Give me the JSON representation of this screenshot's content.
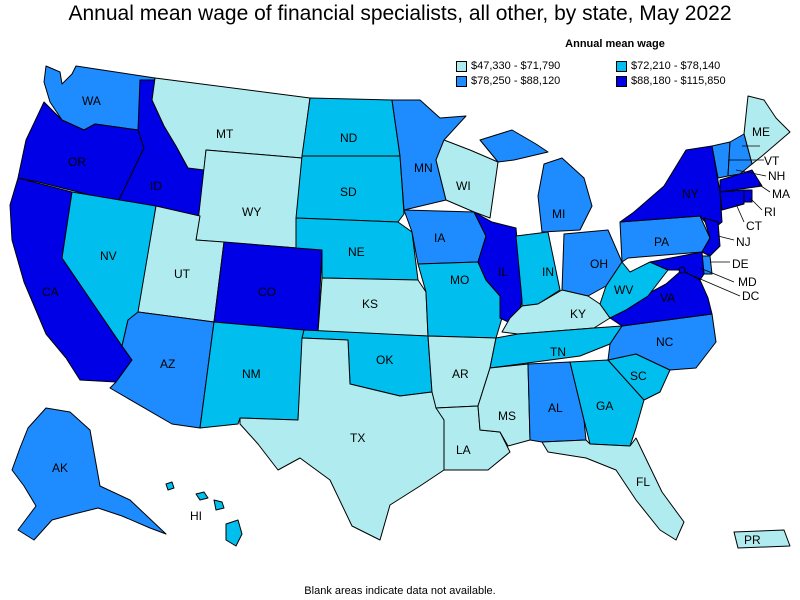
{
  "title": "Annual mean wage of financial specialists, all other, by state, May 2022",
  "legend": {
    "title": "Annual mean wage",
    "bins": [
      {
        "label": "$47,330 - $71,790",
        "color": "#b0ecef"
      },
      {
        "label": "$72,210 - $78,140",
        "color": "#00bfef"
      },
      {
        "label": "$78,250 - $88,120",
        "color": "#1e8cff"
      },
      {
        "label": "$88,180 - $115,850",
        "color": "#0000e6"
      }
    ]
  },
  "footnote": "Blank areas indicate data not available.",
  "states": {
    "WA": {
      "label": "WA",
      "bin": 2
    },
    "OR": {
      "label": "OR",
      "bin": 3
    },
    "CA": {
      "label": "CA",
      "bin": 3
    },
    "ID": {
      "label": "ID",
      "bin": 3
    },
    "NV": {
      "label": "NV",
      "bin": 1
    },
    "MT": {
      "label": "MT",
      "bin": 0
    },
    "WY": {
      "label": "WY",
      "bin": 0
    },
    "UT": {
      "label": "UT",
      "bin": 0
    },
    "AZ": {
      "label": "AZ",
      "bin": 2
    },
    "CO": {
      "label": "CO",
      "bin": 3
    },
    "NM": {
      "label": "NM",
      "bin": 1
    },
    "ND": {
      "label": "ND",
      "bin": 1
    },
    "SD": {
      "label": "SD",
      "bin": 1
    },
    "NE": {
      "label": "NE",
      "bin": 1
    },
    "KS": {
      "label": "KS",
      "bin": 0
    },
    "OK": {
      "label": "OK",
      "bin": 1
    },
    "TX": {
      "label": "TX",
      "bin": 0
    },
    "MN": {
      "label": "MN",
      "bin": 2
    },
    "IA": {
      "label": "IA",
      "bin": 2
    },
    "MO": {
      "label": "MO",
      "bin": 1
    },
    "AR": {
      "label": "AR",
      "bin": 0
    },
    "LA": {
      "label": "LA",
      "bin": 0
    },
    "WI": {
      "label": "WI",
      "bin": 0
    },
    "IL": {
      "label": "IL",
      "bin": 3
    },
    "MI": {
      "label": "MI",
      "bin": 2
    },
    "IN": {
      "label": "IN",
      "bin": 1
    },
    "OH": {
      "label": "OH",
      "bin": 2
    },
    "KY": {
      "label": "KY",
      "bin": 0
    },
    "TN": {
      "label": "TN",
      "bin": 1
    },
    "MS": {
      "label": "MS",
      "bin": 0
    },
    "AL": {
      "label": "AL",
      "bin": 2
    },
    "GA": {
      "label": "GA",
      "bin": 1
    },
    "FL": {
      "label": "FL",
      "bin": 0
    },
    "SC": {
      "label": "SC",
      "bin": 1
    },
    "NC": {
      "label": "NC",
      "bin": 2
    },
    "VA": {
      "label": "VA",
      "bin": 3
    },
    "WV": {
      "label": "WV",
      "bin": 1
    },
    "PA": {
      "label": "PA",
      "bin": 2
    },
    "NY": {
      "label": "NY",
      "bin": 3
    },
    "ME": {
      "label": "ME",
      "bin": 0
    },
    "VT": {
      "label": "VT",
      "bin": 2
    },
    "NH": {
      "label": "NH",
      "bin": 2
    },
    "MA": {
      "label": "MA",
      "bin": 3
    },
    "RI": {
      "label": "RI",
      "bin": 3
    },
    "CT": {
      "label": "CT",
      "bin": 3
    },
    "NJ": {
      "label": "NJ",
      "bin": 3
    },
    "DE": {
      "label": "DE",
      "bin": 2
    },
    "MD": {
      "label": "MD",
      "bin": 3
    },
    "DC": {
      "label": "DC",
      "bin": 3
    },
    "AK": {
      "label": "AK",
      "bin": 2
    },
    "HI": {
      "label": "HI",
      "bin": 1
    },
    "PR": {
      "label": "PR",
      "bin": 0
    }
  }
}
